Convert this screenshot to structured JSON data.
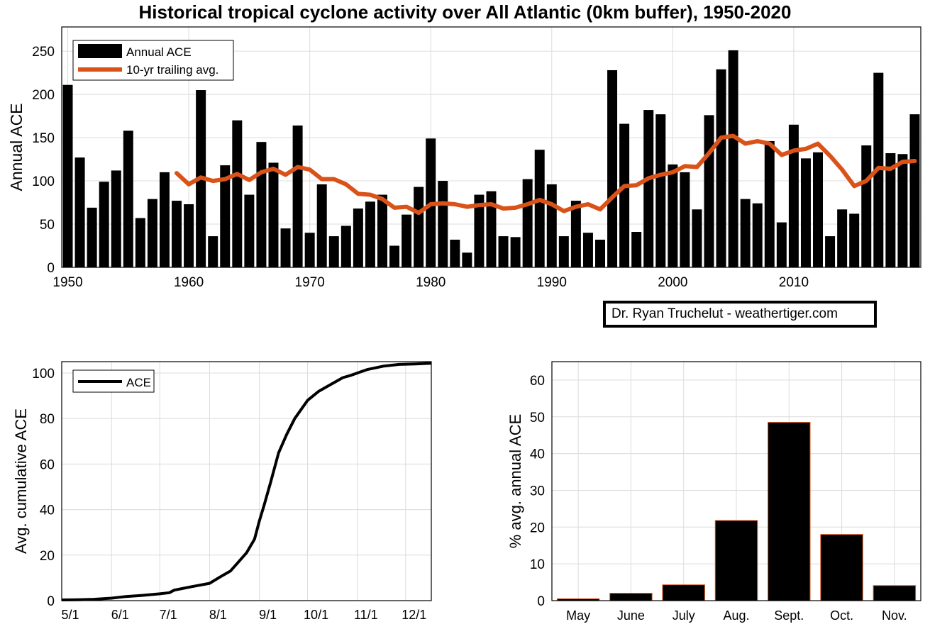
{
  "title": "Historical tropical cyclone activity over All Atlantic (0km buffer), 1950-2020",
  "credit": "Dr. Ryan Truchelut - weathertiger.com",
  "colors": {
    "bar": "#000000",
    "avg_line": "#d95319",
    "grid": "#dcdcdc",
    "month_bar_edge": "#d95319"
  },
  "chart_data": [
    {
      "type": "bar",
      "id": "annual",
      "ylabel": "Annual ACE",
      "xlim": [
        1949.5,
        2020.5
      ],
      "ylim": [
        0,
        278
      ],
      "xticks": [
        1950,
        1960,
        1970,
        1980,
        1990,
        2000,
        2010
      ],
      "yticks": [
        0,
        50,
        100,
        150,
        200,
        250
      ],
      "legend": {
        "position": "top-left",
        "entries": [
          "Annual ACE",
          "10-yr trailing avg."
        ]
      },
      "series": [
        {
          "name": "Annual ACE",
          "x": [
            1950,
            1951,
            1952,
            1953,
            1954,
            1955,
            1956,
            1957,
            1958,
            1959,
            1960,
            1961,
            1962,
            1963,
            1964,
            1965,
            1966,
            1967,
            1968,
            1969,
            1970,
            1971,
            1972,
            1973,
            1974,
            1975,
            1976,
            1977,
            1978,
            1979,
            1980,
            1981,
            1982,
            1983,
            1984,
            1985,
            1986,
            1987,
            1988,
            1989,
            1990,
            1991,
            1992,
            1993,
            1994,
            1995,
            1996,
            1997,
            1998,
            1999,
            2000,
            2001,
            2002,
            2003,
            2004,
            2005,
            2006,
            2007,
            2008,
            2009,
            2010,
            2011,
            2012,
            2013,
            2014,
            2015,
            2016,
            2017,
            2018,
            2019,
            2020
          ],
          "values": [
            211,
            127,
            69,
            99,
            112,
            158,
            57,
            79,
            110,
            77,
            73,
            205,
            36,
            118,
            170,
            84,
            145,
            121,
            45,
            164,
            40,
            96,
            36,
            48,
            68,
            76,
            84,
            25,
            61,
            93,
            149,
            100,
            32,
            17,
            84,
            88,
            36,
            35,
            102,
            136,
            96,
            36,
            77,
            40,
            32,
            228,
            166,
            41,
            182,
            177,
            119,
            110,
            67,
            176,
            229,
            251,
            79,
            74,
            146,
            52,
            165,
            126,
            133,
            36,
            67,
            62,
            141,
            225,
            132,
            131,
            177
          ]
        },
        {
          "name": "10-yr trailing avg.",
          "x": [
            1959,
            1960,
            1961,
            1962,
            1963,
            1964,
            1965,
            1966,
            1967,
            1968,
            1969,
            1970,
            1971,
            1972,
            1973,
            1974,
            1975,
            1976,
            1977,
            1978,
            1979,
            1980,
            1981,
            1982,
            1983,
            1984,
            1985,
            1986,
            1987,
            1988,
            1989,
            1990,
            1991,
            1992,
            1993,
            1994,
            1995,
            1996,
            1997,
            1998,
            1999,
            2000,
            2001,
            2002,
            2003,
            2004,
            2005,
            2006,
            2007,
            2008,
            2009,
            2010,
            2011,
            2012,
            2013,
            2014,
            2015,
            2016,
            2017,
            2018,
            2019,
            2020
          ],
          "values": [
            109,
            96,
            104,
            100,
            102,
            108,
            101,
            110,
            114,
            107,
            116,
            113,
            102,
            102,
            96,
            85,
            84,
            79,
            69,
            70,
            63,
            73,
            74,
            73,
            70,
            72,
            73,
            68,
            69,
            73,
            78,
            73,
            65,
            70,
            73,
            67,
            81,
            94,
            95,
            103,
            107,
            110,
            117,
            116,
            132,
            150,
            152,
            143,
            146,
            143,
            130,
            135,
            137,
            143,
            129,
            113,
            94,
            100,
            115,
            114,
            122,
            123
          ]
        }
      ]
    },
    {
      "type": "line",
      "id": "cumulative",
      "ylabel": "Avg. cumulative ACE",
      "legend": {
        "position": "top-left",
        "entries": [
          "ACE"
        ]
      },
      "xticks": [
        "5/1",
        "6/1",
        "7/1",
        "8/1",
        "9/1",
        "10/1",
        "11/1",
        "12/1"
      ],
      "xtick_days": [
        0,
        31,
        61,
        92,
        123,
        153,
        184,
        214
      ],
      "xlim": [
        0,
        230
      ],
      "ylim": [
        0,
        105
      ],
      "yticks": [
        0,
        20,
        40,
        60,
        80,
        100
      ],
      "series": [
        {
          "name": "ACE",
          "x": [
            0,
            10,
            20,
            31,
            40,
            50,
            61,
            67,
            70,
            80,
            92,
            100,
            105,
            110,
            115,
            120,
            123,
            126,
            130,
            135,
            140,
            145,
            150,
            153,
            160,
            165,
            170,
            175,
            180,
            184,
            190,
            200,
            210,
            220,
            230
          ],
          "y": [
            0.3,
            0.4,
            0.6,
            1.1,
            1.8,
            2.3,
            3.0,
            3.5,
            4.6,
            6.0,
            7.6,
            11,
            13,
            17,
            21,
            27,
            35,
            42,
            52,
            65,
            73,
            80,
            85,
            88,
            92,
            94,
            96,
            98,
            99,
            100,
            101.5,
            103,
            103.8,
            104,
            104.3
          ]
        }
      ]
    },
    {
      "type": "bar",
      "id": "monthly",
      "ylabel": "% avg. annual ACE",
      "categories": [
        "May",
        "June",
        "July",
        "Aug.",
        "Sept.",
        "Oct.",
        "Nov."
      ],
      "values": [
        0.5,
        2,
        4.3,
        21.8,
        48.5,
        18,
        4.1
      ],
      "ylim": [
        0,
        65
      ],
      "yticks": [
        0,
        10,
        20,
        30,
        40,
        50,
        60
      ]
    }
  ]
}
